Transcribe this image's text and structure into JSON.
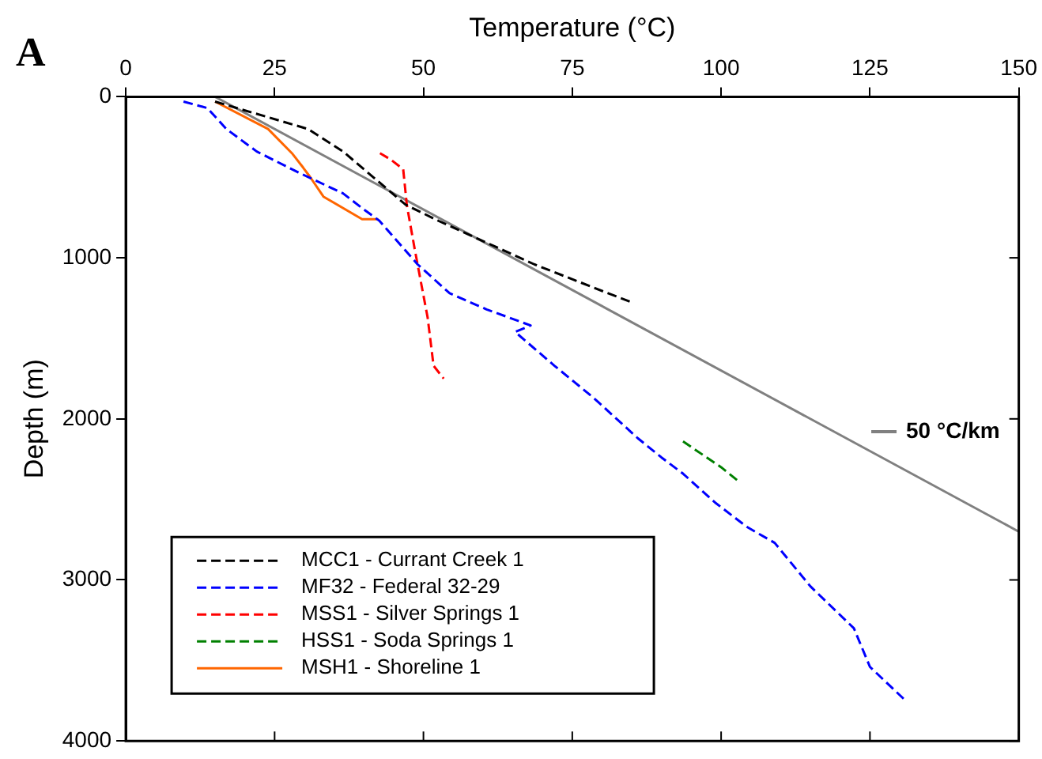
{
  "chart_data": {
    "type": "line",
    "xlabel": "Temperature (°C)",
    "ylabel": "Depth (m)",
    "annotations": [
      "A"
    ],
    "xlim": [
      0,
      150
    ],
    "xticks": [
      0,
      25,
      50,
      75,
      100,
      125,
      150
    ],
    "ylim": [
      4000,
      0
    ],
    "yticks": [
      0,
      1000,
      2000,
      3000,
      4000
    ],
    "grid": false,
    "legend": "bottom left",
    "marker": "none",
    "series": [
      {
        "name": "MCC1 - Currant Creek 1",
        "color": "#000000",
        "line_style": "dashed",
        "x": [
          15,
          30.6,
          36.5,
          47,
          52.5,
          68.6,
          81,
          85.3
        ],
        "values": [
          30,
          200,
          340,
          670,
          770,
          1040,
          1220,
          1280
        ]
      },
      {
        "name": "MF32 - Federal 32-29",
        "color": "#0000ff",
        "line_style": "dashed",
        "x": [
          9.7,
          13.7,
          16.9,
          22,
          29,
          36.5,
          40,
          42.6,
          49,
          54.4,
          60.6,
          68,
          65.4,
          72,
          78.6,
          86,
          90,
          93.6,
          99,
          104.3,
          109,
          115,
          122.3,
          125,
          131
        ],
        "values": [
          30,
          70,
          200,
          340,
          470,
          600,
          700,
          770,
          1040,
          1220,
          1320,
          1420,
          1460,
          1670,
          1870,
          2120,
          2240,
          2340,
          2520,
          2670,
          2770,
          3040,
          3300,
          3540,
          3750
        ]
      },
      {
        "name": "MSS1 - Silver Springs 1",
        "color": "#ff0000",
        "line_style": "dashed",
        "x": [
          42.7,
          44.5,
          46.6,
          47.2,
          48.5,
          50.7,
          51.7,
          53.4
        ],
        "values": [
          350,
          390,
          450,
          670,
          940,
          1370,
          1670,
          1750
        ]
      },
      {
        "name": "HSS1 - Soda Springs 1",
        "color": "#008000",
        "line_style": "dashed",
        "x": [
          93.6,
          100,
          103
        ],
        "values": [
          2140,
          2300,
          2390
        ]
      },
      {
        "name": "MSH1 - Shoreline 1",
        "color": "#ff6600",
        "line_style": "solid",
        "x": [
          15,
          23.9,
          27.9,
          29.8,
          31,
          33.2,
          39.7,
          42.4
        ],
        "values": [
          30,
          200,
          350,
          440,
          500,
          620,
          760,
          760
        ]
      },
      {
        "name": "50 °C/km",
        "color": "#808080",
        "line_style": "solid",
        "x": [
          15,
          150
        ],
        "values": [
          0,
          2700
        ]
      }
    ]
  }
}
